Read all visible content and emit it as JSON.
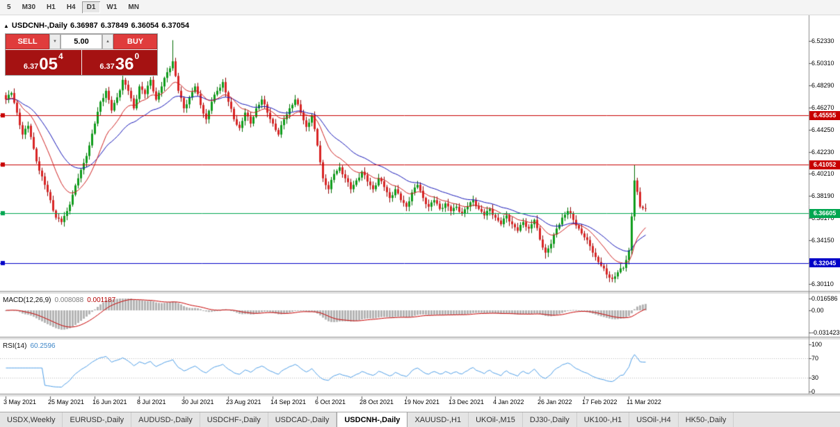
{
  "toolbar": {
    "timeframes": [
      "5",
      "M30",
      "H1",
      "H4",
      "D1",
      "W1",
      "MN"
    ],
    "active": "D1"
  },
  "chart_header": {
    "collapse_icon": "▲",
    "symbol_period": "USDCNH-,Daily",
    "open": "6.36987",
    "high": "6.37849",
    "low": "6.36054",
    "close": "6.37054"
  },
  "trade_panel": {
    "sell_label": "SELL",
    "buy_label": "BUY",
    "volume": "5.00",
    "decrease_icon": "▼",
    "increase_icon": "▲",
    "sell_price_small": "6.37",
    "sell_price_big": "05",
    "sell_price_sup": "4",
    "buy_price_small": "6.37",
    "buy_price_big": "36",
    "buy_price_sup": "0"
  },
  "indicators": {
    "macd": {
      "label": "MACD(12,26,9)",
      "value_main": "0.008088",
      "value_signal": "0.001187",
      "axis_labels": [
        {
          "text": "0.016586",
          "value": 0.016586
        },
        {
          "text": "0.00",
          "value": 0
        },
        {
          "text": "-0.031423",
          "value": -0.031423
        }
      ]
    },
    "rsi": {
      "label": "RSI(14)",
      "value": "60.2596",
      "axis_labels": [
        {
          "text": "100",
          "value": 100
        },
        {
          "text": "70",
          "value": 70
        },
        {
          "text": "30",
          "value": 30
        },
        {
          "text": "0",
          "value": 0
        }
      ]
    }
  },
  "tabs": {
    "active_index": 5,
    "items": [
      "USDX,Weekly",
      "EURUSD-,Daily",
      "AUDUSD-,Daily",
      "USDCHF-,Daily",
      "USDCAD-,Daily",
      "USDCNH-,Daily",
      "XAUUSD-,H1",
      "UKOil-,M15",
      "DJ30-,Daily",
      "UK100-,H1",
      "USOil-,H4",
      "HK50-,Daily"
    ]
  },
  "chart_data": {
    "type": "candlestick",
    "symbol": "USDCNH-",
    "timeframe": "Daily",
    "ohlc": {
      "open": 6.36987,
      "high": 6.37849,
      "low": 6.36054,
      "close": 6.37054
    },
    "price_axis": [
      {
        "text": "6.52330",
        "value": 6.5233
      },
      {
        "text": "6.50310",
        "value": 6.5031
      },
      {
        "text": "6.48290",
        "value": 6.4829
      },
      {
        "text": "6.46270",
        "value": 6.4627
      },
      {
        "text": "6.44250",
        "value": 6.4425
      },
      {
        "text": "6.42230",
        "value": 6.4223
      },
      {
        "text": "6.40210",
        "value": 6.4021
      },
      {
        "text": "6.38190",
        "value": 6.3819
      },
      {
        "text": "6.36170",
        "value": 6.3617
      },
      {
        "text": "6.34150",
        "value": 6.3415
      },
      {
        "text": "6.32130",
        "value": 6.3213
      },
      {
        "text": "6.30110",
        "value": 6.3011
      }
    ],
    "date_axis": [
      {
        "text": "3 May 2021",
        "index": 0
      },
      {
        "text": "25 May 2021",
        "index": 16
      },
      {
        "text": "16 Jun 2021",
        "index": 32
      },
      {
        "text": "8 Jul 2021",
        "index": 48
      },
      {
        "text": "30 Jul 2021",
        "index": 64
      },
      {
        "text": "23 Aug 2021",
        "index": 80
      },
      {
        "text": "14 Sep 2021",
        "index": 96
      },
      {
        "text": "6 Oct 2021",
        "index": 112
      },
      {
        "text": "28 Oct 2021",
        "index": 128
      },
      {
        "text": "19 Nov 2021",
        "index": 144
      },
      {
        "text": "13 Dec 2021",
        "index": 160
      },
      {
        "text": "4 Jan 2022",
        "index": 176
      },
      {
        "text": "26 Jan 2022",
        "index": 192
      },
      {
        "text": "17 Feb 2022",
        "index": 208
      },
      {
        "text": "11 Mar 2022",
        "index": 224
      }
    ],
    "hlines": [
      {
        "label": "6.45555",
        "value": 6.45555,
        "color": "#c80000"
      },
      {
        "label": "6.41052",
        "value": 6.41052,
        "color": "#c80000"
      },
      {
        "label": "6.36605",
        "value": 6.36605,
        "color": "#00a650"
      },
      {
        "label": "6.32045",
        "value": 6.32045,
        "color": "#0000c8"
      }
    ],
    "close_anchors": [
      6.47,
      6.476,
      6.458,
      6.438,
      6.446,
      6.425,
      6.405,
      6.392,
      6.378,
      6.362,
      6.358,
      6.368,
      6.383,
      6.398,
      6.412,
      6.428,
      6.448,
      6.468,
      6.478,
      6.46,
      6.472,
      6.488,
      6.478,
      6.462,
      6.482,
      6.475,
      6.488,
      6.47,
      6.482,
      6.495,
      6.505,
      6.478,
      6.462,
      6.472,
      6.482,
      6.465,
      6.452,
      6.468,
      6.478,
      6.486,
      6.468,
      6.452,
      6.444,
      6.458,
      6.448,
      6.462,
      6.47,
      6.458,
      6.448,
      6.438,
      6.452,
      6.462,
      6.47,
      6.458,
      6.445,
      6.455,
      6.428,
      6.398,
      6.388,
      6.402,
      6.408,
      6.398,
      6.388,
      6.396,
      6.404,
      6.395,
      6.388,
      6.398,
      6.39,
      6.38,
      6.388,
      6.378,
      6.372,
      6.385,
      6.392,
      6.38,
      6.372,
      6.378,
      6.37,
      6.375,
      6.368,
      6.372,
      6.366,
      6.372,
      6.378,
      6.37,
      6.364,
      6.37,
      6.362,
      6.356,
      6.364,
      6.356,
      6.35,
      6.358,
      6.352,
      6.36,
      6.342,
      6.33,
      6.338,
      6.352,
      6.362,
      6.368,
      6.36,
      6.352,
      6.344,
      6.336,
      6.326,
      6.318,
      6.31,
      6.306,
      6.312,
      6.316,
      6.332,
      6.396,
      6.372,
      6.3705
    ],
    "high_overrides": {
      "60": 6.5243,
      "226": 6.4105
    },
    "low_overrides": {
      "20": 6.3555,
      "194": 6.3245,
      "218": 6.303
    },
    "ma_fast_period": 14,
    "ma_slow_period": 30,
    "macd_params": {
      "fast": 12,
      "slow": 26,
      "signal": 9
    },
    "rsi_period": 14,
    "colors": {
      "up": "#0f9d1c",
      "up_border": "#006b00",
      "down": "#d92525",
      "down_border": "#8e0000",
      "ma_fast": "#d02020",
      "ma_slow": "#1414b8",
      "macd_hist": "#b4b4b4",
      "macd_signal": "#c80000",
      "rsi_line": "#4f9fe8"
    }
  }
}
